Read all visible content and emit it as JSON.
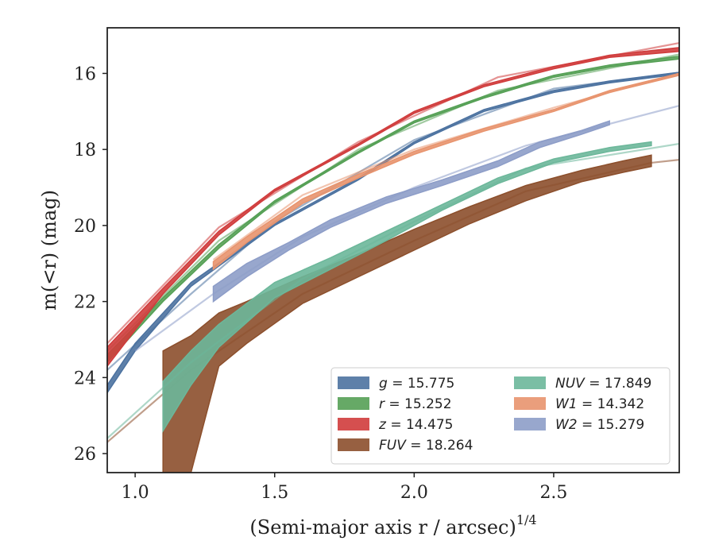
{
  "chart_data": {
    "type": "area",
    "xlabel": "(Semi-major axis r / arcsec)^1/4",
    "ylabel": "m(<r) (mag)",
    "xlim": [
      0.9,
      2.95
    ],
    "ylim": [
      26.5,
      14.8
    ],
    "y_inverted": true,
    "xticks": [
      1.0,
      1.5,
      2.0,
      2.5
    ],
    "xtick_labels": [
      "1.0",
      "1.5",
      "2.0",
      "2.5"
    ],
    "yticks": [
      16,
      18,
      20,
      22,
      24,
      26
    ],
    "ytick_labels": [
      "16",
      "18",
      "20",
      "22",
      "24",
      "26"
    ],
    "grid": false,
    "legend_position": "lower-right",
    "series": [
      {
        "name": "g = 15.775",
        "legend": {
          "italic": "g",
          "rest": " = 15.775"
        },
        "color": "#4c72a0",
        "measured_x_range": [
          0.9,
          2.95
        ],
        "band": [
          [
            0.9,
            24.2,
            24.4
          ],
          [
            1.0,
            23.1,
            23.3
          ],
          [
            1.2,
            21.5,
            21.6
          ],
          [
            1.5,
            19.95,
            20.0
          ],
          [
            1.8,
            18.75,
            18.8
          ],
          [
            2.0,
            17.8,
            17.85
          ],
          [
            2.25,
            16.95,
            17.0
          ],
          [
            2.5,
            16.45,
            16.5
          ],
          [
            2.7,
            16.2,
            16.25
          ],
          [
            2.95,
            15.97,
            16.02
          ]
        ],
        "model": [
          [
            0.9,
            23.8
          ],
          [
            1.2,
            21.8
          ],
          [
            1.5,
            19.9
          ],
          [
            2.0,
            17.75
          ],
          [
            2.5,
            16.4
          ],
          [
            2.95,
            15.98
          ]
        ]
      },
      {
        "name": "r = 15.252",
        "legend": {
          "italic": "r",
          "rest": " = 15.252"
        },
        "color": "#55a055",
        "measured_x_range": [
          0.9,
          2.95
        ],
        "band": [
          [
            0.9,
            23.4,
            23.6
          ],
          [
            1.1,
            21.9,
            22.0
          ],
          [
            1.3,
            20.5,
            20.6
          ],
          [
            1.5,
            19.35,
            19.4
          ],
          [
            1.8,
            18.05,
            18.1
          ],
          [
            2.0,
            17.25,
            17.3
          ],
          [
            2.25,
            16.6,
            16.65
          ],
          [
            2.5,
            16.05,
            16.1
          ],
          [
            2.7,
            15.78,
            15.83
          ],
          [
            2.95,
            15.55,
            15.62
          ]
        ],
        "model": [
          [
            0.9,
            23.3
          ],
          [
            1.3,
            20.4
          ],
          [
            1.8,
            18.0
          ],
          [
            2.3,
            16.45
          ],
          [
            2.95,
            15.5
          ]
        ]
      },
      {
        "name": "z = 14.475",
        "legend": {
          "italic": "z",
          "rest": " = 14.475"
        },
        "color": "#d03c3c",
        "measured_x_range": [
          0.9,
          2.95
        ],
        "band": [
          [
            0.9,
            23.2,
            23.7
          ],
          [
            1.1,
            21.65,
            21.8
          ],
          [
            1.3,
            20.15,
            20.25
          ],
          [
            1.5,
            19.05,
            19.1
          ],
          [
            1.8,
            17.85,
            17.9
          ],
          [
            2.0,
            17.0,
            17.05
          ],
          [
            2.25,
            16.3,
            16.35
          ],
          [
            2.5,
            15.82,
            15.88
          ],
          [
            2.7,
            15.52,
            15.58
          ],
          [
            2.95,
            15.32,
            15.42
          ]
        ],
        "model": [
          [
            0.9,
            23.1
          ],
          [
            1.3,
            20.05
          ],
          [
            1.8,
            17.8
          ],
          [
            2.3,
            16.1
          ],
          [
            2.95,
            15.2
          ]
        ]
      },
      {
        "name": "FUV = 18.264",
        "legend": {
          "italic": "FUV",
          "rest": " = 18.264"
        },
        "color": "#8c4f2c",
        "measured_x_range": [
          1.1,
          2.85
        ],
        "band": [
          [
            1.1,
            23.3,
            26.5
          ],
          [
            1.2,
            22.9,
            26.5
          ],
          [
            1.3,
            22.3,
            23.7
          ],
          [
            1.4,
            22.0,
            23.1
          ],
          [
            1.6,
            21.35,
            22.05
          ],
          [
            1.8,
            20.75,
            21.35
          ],
          [
            2.0,
            20.1,
            20.65
          ],
          [
            2.2,
            19.5,
            19.95
          ],
          [
            2.4,
            18.95,
            19.35
          ],
          [
            2.6,
            18.55,
            18.85
          ],
          [
            2.75,
            18.3,
            18.6
          ],
          [
            2.85,
            18.15,
            18.45
          ]
        ],
        "model": [
          [
            0.9,
            25.7
          ],
          [
            1.2,
            23.8
          ],
          [
            1.6,
            21.8
          ],
          [
            2.0,
            20.4
          ],
          [
            2.4,
            19.1
          ],
          [
            2.85,
            18.35
          ],
          [
            2.95,
            18.27
          ]
        ]
      },
      {
        "name": "NUV = 17.849",
        "legend": {
          "italic": "NUV",
          "rest": " = 17.849"
        },
        "color": "#6cb79a",
        "measured_x_range": [
          1.1,
          2.85
        ],
        "band": [
          [
            1.1,
            24.1,
            25.4
          ],
          [
            1.2,
            23.3,
            24.2
          ],
          [
            1.3,
            22.6,
            23.2
          ],
          [
            1.5,
            21.5,
            21.9
          ],
          [
            1.7,
            20.85,
            21.15
          ],
          [
            1.9,
            20.15,
            20.4
          ],
          [
            2.1,
            19.45,
            19.6
          ],
          [
            2.3,
            18.75,
            18.9
          ],
          [
            2.5,
            18.25,
            18.35
          ],
          [
            2.7,
            17.95,
            18.05
          ],
          [
            2.85,
            17.8,
            17.9
          ]
        ],
        "model": [
          [
            0.9,
            25.6
          ],
          [
            1.2,
            23.6
          ],
          [
            1.6,
            21.4
          ],
          [
            2.0,
            19.9
          ],
          [
            2.4,
            18.5
          ],
          [
            2.95,
            17.85
          ]
        ]
      },
      {
        "name": "W1 = 14.342",
        "legend": {
          "italic": "W1",
          "rest": " = 14.342"
        },
        "color": "#e8946e",
        "measured_x_range": [
          1.28,
          2.95
        ],
        "band": [
          [
            1.28,
            20.95,
            21.15
          ],
          [
            1.4,
            20.3,
            20.45
          ],
          [
            1.6,
            19.3,
            19.42
          ],
          [
            1.8,
            18.65,
            18.75
          ],
          [
            2.0,
            18.05,
            18.13
          ],
          [
            2.25,
            17.45,
            17.52
          ],
          [
            2.5,
            16.95,
            17.0
          ],
          [
            2.7,
            16.45,
            16.5
          ],
          [
            2.95,
            16.0,
            16.05
          ]
        ],
        "model": [
          [
            1.28,
            20.9
          ],
          [
            1.6,
            19.2
          ],
          [
            2.0,
            18.0
          ],
          [
            2.5,
            16.9
          ],
          [
            2.95,
            16.0
          ]
        ]
      },
      {
        "name": "W2 = 15.279",
        "legend": {
          "italic": "W2",
          "rest": " = 15.279"
        },
        "color": "#8d9dc8",
        "measured_x_range": [
          1.28,
          2.7
        ],
        "band": [
          [
            1.28,
            21.6,
            22.0
          ],
          [
            1.4,
            21.0,
            21.35
          ],
          [
            1.55,
            20.45,
            20.65
          ],
          [
            1.7,
            19.85,
            20.05
          ],
          [
            1.9,
            19.25,
            19.42
          ],
          [
            2.1,
            18.8,
            18.95
          ],
          [
            2.3,
            18.3,
            18.45
          ],
          [
            2.45,
            17.8,
            17.95
          ],
          [
            2.6,
            17.5,
            17.6
          ],
          [
            2.7,
            17.25,
            17.35
          ]
        ],
        "model": [
          [
            1.0,
            23.3
          ],
          [
            1.28,
            21.8
          ],
          [
            1.6,
            20.3
          ],
          [
            2.0,
            19.0
          ],
          [
            2.4,
            17.9
          ],
          [
            2.95,
            16.85
          ]
        ]
      }
    ],
    "legend_columns": [
      [
        "g = 15.775",
        "r = 15.252",
        "z = 14.475",
        "FUV = 18.264"
      ],
      [
        "NUV = 17.849",
        "W1 = 14.342",
        "W2 = 15.279"
      ]
    ]
  }
}
